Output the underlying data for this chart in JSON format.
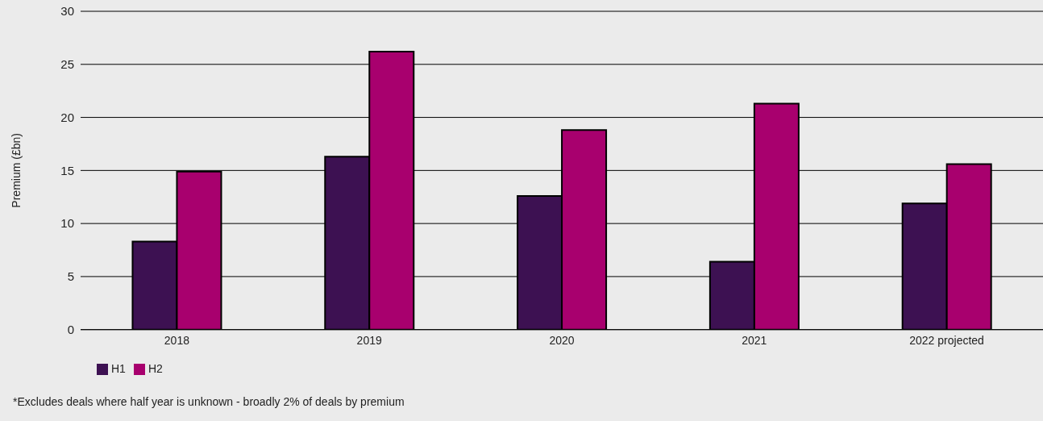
{
  "chart_data": {
    "type": "bar",
    "ylabel": "Premium (£bn)",
    "categories": [
      "2018",
      "2019",
      "2020",
      "2021",
      "2022 projected"
    ],
    "series": [
      {
        "name": "H1",
        "color": "#3d1152",
        "values": [
          8.3,
          16.3,
          12.6,
          6.4,
          11.9
        ]
      },
      {
        "name": "H2",
        "color": "#a8006e",
        "values": [
          14.9,
          26.2,
          18.8,
          21.3,
          15.6
        ]
      }
    ],
    "ylim": [
      0,
      30
    ],
    "yticks": [
      0,
      5,
      10,
      15,
      20,
      25,
      30
    ],
    "grid": "y",
    "legend": "bottom left",
    "annotations": [
      "*Excludes deals where half year is unknown - broadly 2% of deals by premium"
    ]
  }
}
